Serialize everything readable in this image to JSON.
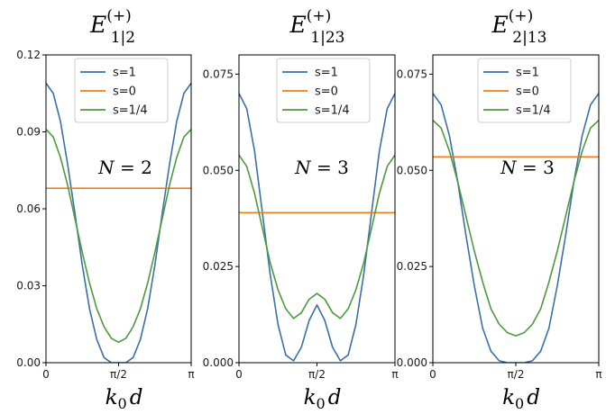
{
  "chart_data": [
    {
      "type": "line",
      "title": {
        "base": "E",
        "sup": "(+)",
        "sub": "1|2"
      },
      "annotation": {
        "var": "N",
        "eq": "= 2"
      },
      "xlabel": {
        "base": "k",
        "sub": "0",
        "tail": "d"
      },
      "xticks": [
        {
          "value": 0,
          "label": "0"
        },
        {
          "value": 1.5708,
          "label": "π/2"
        },
        {
          "value": 3.1416,
          "label": "π"
        }
      ],
      "yticks": [
        {
          "value": 0,
          "label": "0.00"
        },
        {
          "value": 0.03,
          "label": "0.03"
        },
        {
          "value": 0.06,
          "label": "0.06"
        },
        {
          "value": 0.09,
          "label": "0.09"
        },
        {
          "value": 0.12,
          "label": "0.12"
        }
      ],
      "xlim": [
        0,
        3.1416
      ],
      "ylim": [
        0,
        0.12
      ],
      "series": [
        {
          "name": "s=1",
          "color": "#3b6fa8",
          "x": [
            0,
            0.1571,
            0.3142,
            0.4712,
            0.6283,
            0.7854,
            0.9425,
            1.0996,
            1.2566,
            1.4137,
            1.5708,
            1.7279,
            1.885,
            2.042,
            2.1991,
            2.3562,
            2.5133,
            2.6704,
            2.8274,
            2.9845,
            3.1416
          ],
          "y": [
            0.109,
            0.105,
            0.094,
            0.077,
            0.058,
            0.038,
            0.021,
            0.009,
            0.002,
            0.0,
            0.0,
            0.0,
            0.002,
            0.009,
            0.021,
            0.038,
            0.058,
            0.077,
            0.094,
            0.105,
            0.109
          ]
        },
        {
          "name": "s=0",
          "color": "#f07c1d",
          "x": [
            0,
            3.1416
          ],
          "y": [
            0.068,
            0.068
          ]
        },
        {
          "name": "s=1/4",
          "color": "#4e9a3f",
          "x": [
            0,
            0.1571,
            0.3142,
            0.4712,
            0.6283,
            0.7854,
            0.9425,
            1.0996,
            1.2566,
            1.4137,
            1.5708,
            1.7279,
            1.885,
            2.042,
            2.1991,
            2.3562,
            2.5133,
            2.6704,
            2.8274,
            2.9845,
            3.1416
          ],
          "y": [
            0.091,
            0.088,
            0.08,
            0.069,
            0.056,
            0.043,
            0.031,
            0.021,
            0.014,
            0.0095,
            0.008,
            0.0095,
            0.014,
            0.021,
            0.031,
            0.043,
            0.056,
            0.069,
            0.08,
            0.088,
            0.091
          ]
        }
      ]
    },
    {
      "type": "line",
      "title": {
        "base": "E",
        "sup": "(+)",
        "sub": "1|23"
      },
      "annotation": {
        "var": "N",
        "eq": "= 3"
      },
      "xlabel": {
        "base": "k",
        "sub": "0",
        "tail": "d"
      },
      "xticks": [
        {
          "value": 0,
          "label": "0"
        },
        {
          "value": 1.5708,
          "label": "π/2"
        },
        {
          "value": 3.1416,
          "label": "π"
        }
      ],
      "yticks": [
        {
          "value": 0,
          "label": "0.000"
        },
        {
          "value": 0.025,
          "label": "0.025"
        },
        {
          "value": 0.05,
          "label": "0.050"
        },
        {
          "value": 0.075,
          "label": "0.075"
        }
      ],
      "xlim": [
        0,
        3.1416
      ],
      "ylim": [
        0,
        0.08
      ],
      "series": [
        {
          "name": "s=1",
          "color": "#3b6fa8",
          "x": [
            0,
            0.1571,
            0.3142,
            0.4712,
            0.6283,
            0.7854,
            0.9425,
            1.0996,
            1.2566,
            1.4137,
            1.5708,
            1.7279,
            1.885,
            2.042,
            2.1991,
            2.3562,
            2.5133,
            2.6704,
            2.8274,
            2.9845,
            3.1416
          ],
          "y": [
            0.07,
            0.066,
            0.055,
            0.039,
            0.023,
            0.01,
            0.002,
            0.0005,
            0.004,
            0.011,
            0.015,
            0.011,
            0.004,
            0.0005,
            0.002,
            0.01,
            0.023,
            0.039,
            0.055,
            0.066,
            0.07
          ]
        },
        {
          "name": "s=0",
          "color": "#f07c1d",
          "x": [
            0,
            3.1416
          ],
          "y": [
            0.039,
            0.039
          ]
        },
        {
          "name": "s=1/4",
          "color": "#4e9a3f",
          "x": [
            0,
            0.1571,
            0.3142,
            0.4712,
            0.6283,
            0.7854,
            0.9425,
            1.0996,
            1.2566,
            1.4137,
            1.5708,
            1.7279,
            1.885,
            2.042,
            2.1991,
            2.3562,
            2.5133,
            2.6704,
            2.8274,
            2.9845,
            3.1416
          ],
          "y": [
            0.054,
            0.051,
            0.044,
            0.035,
            0.026,
            0.019,
            0.014,
            0.0115,
            0.013,
            0.0165,
            0.018,
            0.0165,
            0.013,
            0.0115,
            0.014,
            0.019,
            0.026,
            0.035,
            0.044,
            0.051,
            0.054
          ]
        }
      ]
    },
    {
      "type": "line",
      "title": {
        "base": "E",
        "sup": "(+)",
        "sub": "2|13"
      },
      "annotation": {
        "var": "N",
        "eq": "= 3"
      },
      "xlabel": {
        "base": "k",
        "sub": "0",
        "tail": "d"
      },
      "xticks": [
        {
          "value": 0,
          "label": "0"
        },
        {
          "value": 1.5708,
          "label": "π/2"
        },
        {
          "value": 3.1416,
          "label": "π"
        }
      ],
      "yticks": [
        {
          "value": 0,
          "label": "0.000"
        },
        {
          "value": 0.025,
          "label": "0.025"
        },
        {
          "value": 0.05,
          "label": "0.050"
        },
        {
          "value": 0.075,
          "label": "0.075"
        }
      ],
      "xlim": [
        0,
        3.1416
      ],
      "ylim": [
        0,
        0.08
      ],
      "series": [
        {
          "name": "s=1",
          "color": "#3b6fa8",
          "x": [
            0,
            0.1571,
            0.3142,
            0.4712,
            0.6283,
            0.7854,
            0.9425,
            1.0996,
            1.2566,
            1.4137,
            1.5708,
            1.7279,
            1.885,
            2.042,
            2.1991,
            2.3562,
            2.5133,
            2.6704,
            2.8274,
            2.9845,
            3.1416
          ],
          "y": [
            0.07,
            0.067,
            0.059,
            0.047,
            0.033,
            0.02,
            0.009,
            0.003,
            0.0005,
            0.0,
            0.0,
            0.0,
            0.0005,
            0.003,
            0.009,
            0.02,
            0.033,
            0.047,
            0.059,
            0.067,
            0.07
          ]
        },
        {
          "name": "s=0",
          "color": "#f07c1d",
          "x": [
            0,
            3.1416
          ],
          "y": [
            0.0535,
            0.0535
          ]
        },
        {
          "name": "s=1/4",
          "color": "#4e9a3f",
          "x": [
            0,
            0.1571,
            0.3142,
            0.4712,
            0.6283,
            0.7854,
            0.9425,
            1.0996,
            1.2566,
            1.4137,
            1.5708,
            1.7279,
            1.885,
            2.042,
            2.1991,
            2.3562,
            2.5133,
            2.6704,
            2.8274,
            2.9845,
            3.1416
          ],
          "y": [
            0.063,
            0.061,
            0.055,
            0.047,
            0.038,
            0.029,
            0.021,
            0.014,
            0.01,
            0.0078,
            0.007,
            0.0078,
            0.01,
            0.014,
            0.021,
            0.029,
            0.038,
            0.047,
            0.055,
            0.061,
            0.063
          ]
        }
      ]
    }
  ]
}
